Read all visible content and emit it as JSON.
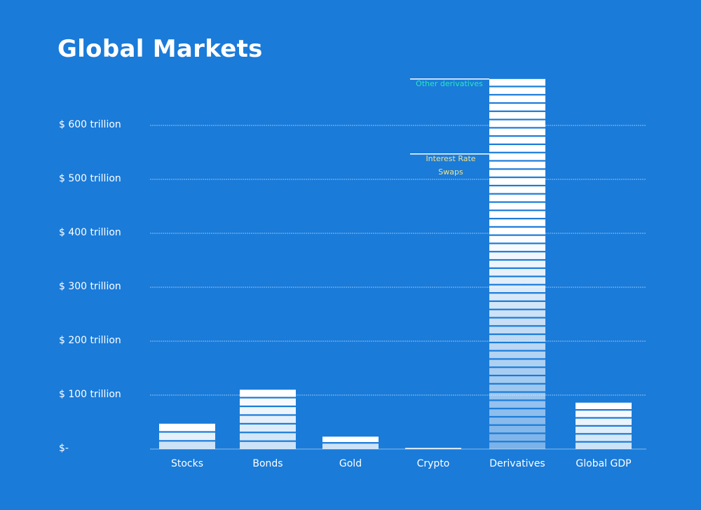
{
  "chart_data": {
    "type": "bar",
    "title": "Global Markets",
    "categories": [
      "Stocks",
      "Bonds",
      "Gold",
      "Crypto",
      "Derivatives",
      "Global GDP"
    ],
    "values": [
      47,
      110,
      23,
      2,
      686,
      86
    ],
    "ylim": [
      0,
      700
    ],
    "yticks": [
      0,
      100,
      200,
      300,
      400,
      500,
      600
    ],
    "ytick_labels": [
      "$-",
      "$ 100 trillion",
      "$ 200 trillion",
      "$ 300 trillion",
      "$ 400 trillion",
      "$ 500 trillion",
      "$ 600 trillion"
    ],
    "grid": true,
    "annotations": [
      {
        "text": "Other derivatives",
        "value": 686
      },
      {
        "text": "Interest Rate\nSwaps",
        "value": 547
      }
    ]
  },
  "colors": {
    "background": "#1a7bd9",
    "bar": "#ffffff",
    "other_derivatives_label": "#2de3c1",
    "interest_rate_swaps_label": "#f2e38a",
    "grid": "#bcd9f5"
  }
}
